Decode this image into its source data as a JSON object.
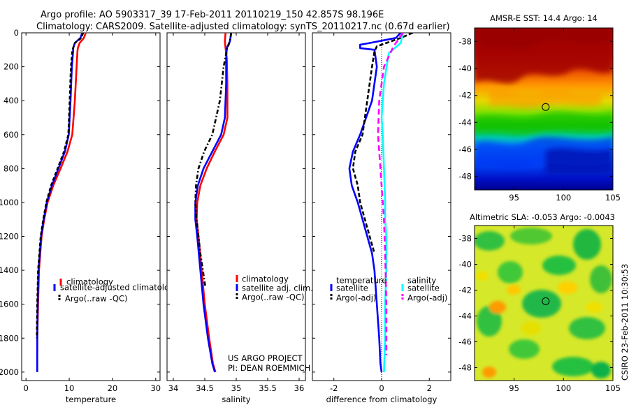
{
  "header": {
    "line1": "Argo profile: AO 5903317_39 17-Feb-2011 20110219_150 42.857S 98.196E",
    "line2": "Climatology: CARS2009. Satellite-adjusted climatology: synTS_20110217.nc (0.67d earlier)"
  },
  "chart_data": [
    {
      "type": "line",
      "panel": "temperature",
      "xlabel": "temperature",
      "ylabel": "",
      "xlim": [
        -1,
        31
      ],
      "ylim": [
        2050,
        0
      ],
      "xticks": [
        0,
        10,
        20,
        30
      ],
      "yticks": [
        0,
        200,
        400,
        600,
        800,
        1000,
        1200,
        1400,
        1600,
        1800,
        2000
      ],
      "legend": [
        "climatology",
        "satellite-adjusted climatology",
        "Argo(..raw -QC)"
      ],
      "series": [
        {
          "name": "climatology",
          "color": "#ff0000",
          "dash": "",
          "x": [
            13.8,
            13.4,
            12.4,
            12.0,
            11.9,
            11.7,
            11.3,
            10.7,
            9.6,
            8.0,
            6.3,
            5.0,
            4.2,
            3.6,
            3.3,
            3.0,
            2.8,
            2.6,
            2.6
          ],
          "y": [
            0,
            30,
            60,
            90,
            110,
            200,
            400,
            600,
            700,
            800,
            900,
            1000,
            1100,
            1200,
            1300,
            1400,
            1600,
            1800,
            1880
          ]
        },
        {
          "name": "satellite-adjusted climatology",
          "color": "#0000ff",
          "dash": "",
          "x": [
            13.0,
            12.6,
            11.3,
            10.9,
            10.9,
            10.6,
            10.3,
            9.9,
            9.0,
            7.5,
            6.0,
            4.8,
            4.1,
            3.5,
            3.2,
            2.9,
            2.7,
            2.6,
            2.6
          ],
          "y": [
            0,
            30,
            60,
            90,
            110,
            200,
            400,
            600,
            700,
            800,
            900,
            1000,
            1100,
            1200,
            1300,
            1400,
            1600,
            1800,
            2000
          ]
        },
        {
          "name": "Argo(..raw -QC)",
          "color": "#000000",
          "dash": "5,3",
          "x": [
            13.2,
            12.8,
            11.3,
            10.9,
            10.7,
            10.4,
            10.1,
            9.8,
            8.8,
            7.3,
            5.8,
            4.7,
            4.0,
            3.4,
            3.1,
            2.8,
            2.6,
            2.5
          ],
          "y": [
            0,
            30,
            60,
            90,
            110,
            200,
            400,
            600,
            700,
            800,
            900,
            1000,
            1100,
            1200,
            1300,
            1400,
            1600,
            1800
          ]
        }
      ]
    },
    {
      "type": "line",
      "panel": "salinity",
      "xlabel": "salinity",
      "xlim": [
        33.9,
        36.1
      ],
      "ylim": [
        2050,
        0
      ],
      "xticks": [
        34,
        34.5,
        35,
        35.5,
        36
      ],
      "xticklabels": [
        "34",
        "34.5",
        "35",
        "35.5",
        "36"
      ],
      "legend": [
        "climatology",
        "satellite adj. clim.",
        "Argo(..raw -QC)"
      ],
      "series": [
        {
          "name": "climatology",
          "color": "#ff0000",
          "dash": "",
          "x": [
            34.83,
            34.82,
            34.83,
            34.85,
            34.86,
            34.86,
            34.8,
            34.66,
            34.53,
            34.43,
            34.38,
            34.37,
            34.4,
            34.45,
            34.5,
            34.57,
            34.63,
            34.67
          ],
          "y": [
            0,
            50,
            90,
            150,
            300,
            500,
            600,
            700,
            800,
            900,
            1000,
            1100,
            1200,
            1400,
            1600,
            1800,
            1950,
            2000
          ]
        },
        {
          "name": "satellite adj. clim.",
          "color": "#0000ff",
          "dash": "",
          "x": [
            34.92,
            34.9,
            34.85,
            34.84,
            34.84,
            34.82,
            34.76,
            34.62,
            34.48,
            34.39,
            34.35,
            34.35,
            34.38,
            34.43,
            34.48,
            34.55,
            34.62,
            34.66
          ],
          "y": [
            0,
            50,
            90,
            150,
            300,
            500,
            600,
            700,
            800,
            900,
            1000,
            1100,
            1200,
            1400,
            1600,
            1800,
            1950,
            2000
          ]
        },
        {
          "name": "Argo(..raw -QC)",
          "color": "#000000",
          "dash": "6,3,2,3",
          "x": [
            34.92,
            34.9,
            34.85,
            34.8,
            34.74,
            34.62,
            34.49,
            34.4,
            34.36,
            34.35,
            34.37,
            34.4,
            34.43,
            34.47,
            34.51
          ],
          "y": [
            0,
            50,
            100,
            200,
            400,
            600,
            700,
            800,
            900,
            1000,
            1100,
            1200,
            1300,
            1400,
            1500
          ]
        }
      ]
    },
    {
      "type": "line",
      "panel": "difference",
      "xlabel": "difference from climatology",
      "xlim": [
        -2.9,
        2.9
      ],
      "ylim": [
        2050,
        0
      ],
      "xticks": [
        -2,
        0,
        2
      ],
      "legend_left_title": "temperature",
      "legend_right_title": "salinity",
      "legend": [
        "satellite",
        "Argo(-adj)",
        "satellite",
        "Argo(-adj)"
      ],
      "series": [
        {
          "name": "temperature satellite",
          "color": "#0000ff",
          "dash": "",
          "x": [
            0.8,
            0.6,
            -0.5,
            -0.9,
            -0.9,
            -0.3,
            -0.2,
            -0.4,
            -0.9,
            -1.2,
            -1.35,
            -1.25,
            -1.0,
            -0.8,
            -0.6,
            -0.4,
            -0.3,
            -0.2,
            -0.1,
            -0.05,
            0.0
          ],
          "y": [
            0,
            30,
            60,
            70,
            90,
            100,
            200,
            400,
            600,
            700,
            800,
            900,
            1000,
            1100,
            1200,
            1300,
            1400,
            1600,
            1800,
            1950,
            2000
          ]
        },
        {
          "name": "temperature Argo(-adj)",
          "color": "#000000",
          "dash": "6,3",
          "x": [
            1.3,
            0.8,
            -0.2,
            -0.3,
            -0.4,
            -0.6,
            -0.8,
            -1.1,
            -1.2,
            -1.0,
            -0.9,
            -0.7,
            -0.5,
            -0.3
          ],
          "y": [
            0,
            30,
            80,
            110,
            200,
            400,
            600,
            700,
            800,
            900,
            1000,
            1100,
            1200,
            1300
          ]
        },
        {
          "name": "salinity satellite",
          "color": "#00ffff",
          "dash": "",
          "x": [
            0.9,
            0.8,
            0.3,
            0.1,
            0.0,
            0.05,
            0.1,
            0.15,
            0.15,
            0.2,
            0.2,
            0.15,
            0.15,
            0.1
          ],
          "y": [
            0,
            60,
            120,
            300,
            500,
            600,
            800,
            1000,
            1100,
            1200,
            1400,
            1600,
            1800,
            2000
          ]
        },
        {
          "name": "salinity Argo(-adj)",
          "color": "#ff00ff",
          "dash": "8,5",
          "x": [
            0.9,
            0.5,
            0.1,
            -0.1,
            -0.15,
            -0.1,
            -0.05,
            0.0,
            0.05,
            0.1,
            0.15,
            0.2,
            0.2
          ],
          "y": [
            0,
            80,
            200,
            400,
            600,
            700,
            800,
            900,
            1000,
            1100,
            1300,
            1600,
            1900
          ]
        }
      ]
    },
    {
      "type": "heatmap",
      "panel": "sst",
      "title": "AMSR-E SST: 14.4 Argo: 14",
      "xlim": [
        91,
        105
      ],
      "ylim": [
        -49,
        -37
      ],
      "xticks": [
        95,
        100,
        105
      ],
      "yticks": [
        -38,
        -40,
        -42,
        -44,
        -46,
        -48
      ],
      "marker": {
        "lon": 98.196,
        "lat": -42.857
      }
    },
    {
      "type": "heatmap",
      "panel": "sla",
      "title": "Altimetric SLA: -0.053 Argo: -0.0043",
      "xlim": [
        91,
        105
      ],
      "ylim": [
        -49,
        -37
      ],
      "xticks": [
        95,
        100,
        105
      ],
      "yticks": [
        -38,
        -40,
        -42,
        -44,
        -46,
        -48
      ],
      "marker": {
        "lon": 98.196,
        "lat": -42.857
      }
    }
  ],
  "annotations": {
    "project": "US ARGO PROJECT",
    "pi": "PI: DEAN ROEMMICH",
    "credit": "CSIRO 23-Feb-2011 10:30:53"
  }
}
